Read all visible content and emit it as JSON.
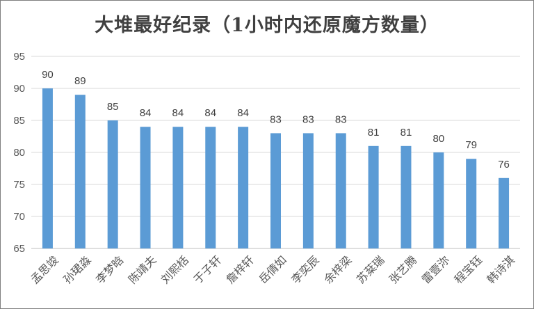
{
  "chart_data": {
    "type": "bar",
    "title": "大堆最好纪录（1小时内还原魔方数量）",
    "categories": [
      "孟思竣",
      "孙珺淼",
      "李梦晗",
      "陈靖夫",
      "刘熙栝",
      "于子轩",
      "詹梓轩",
      "岳倩如",
      "李奕辰",
      "余梓梁",
      "苏棻瑞",
      "张艺腾",
      "雷壹沵",
      "程宝钰",
      "韩诗淇"
    ],
    "values": [
      90,
      89,
      85,
      84,
      84,
      84,
      84,
      83,
      83,
      83,
      81,
      81,
      80,
      79,
      76
    ],
    "ylim": [
      65,
      95
    ],
    "yticks": [
      65,
      70,
      75,
      80,
      85,
      90,
      95
    ],
    "grid": true,
    "xlabel": "",
    "ylabel": "",
    "bar_color": "#5b9bd5"
  }
}
